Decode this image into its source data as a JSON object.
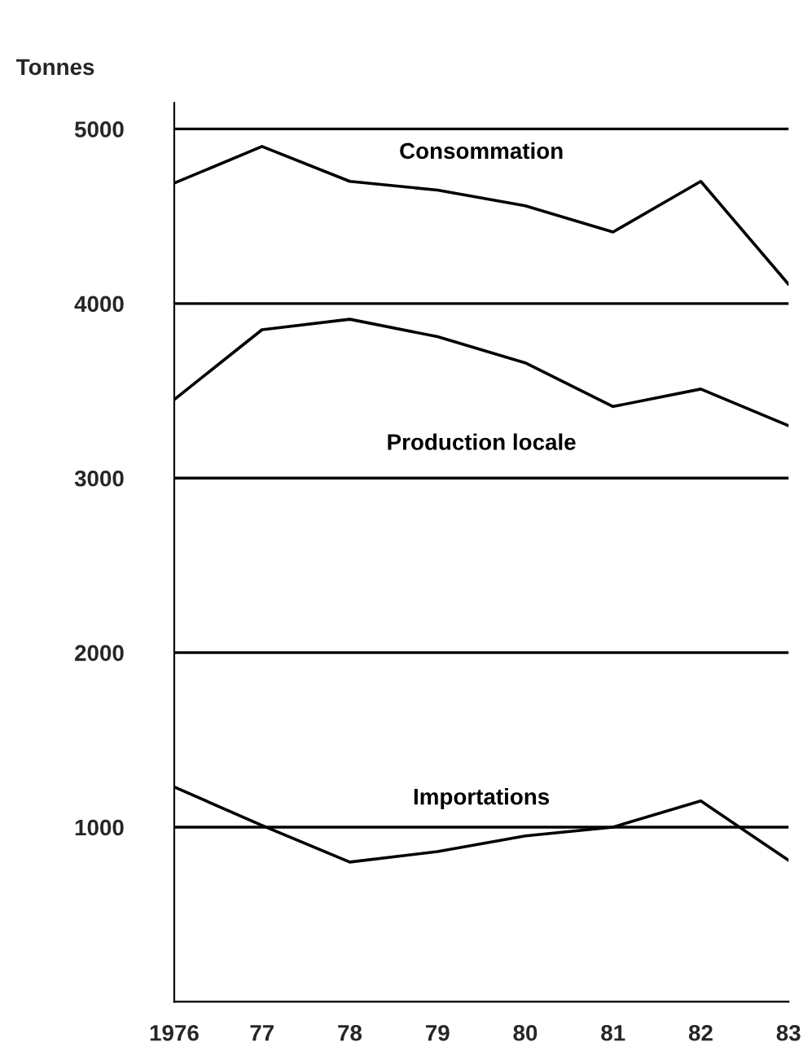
{
  "chart_data": {
    "type": "line",
    "ylabel": "Tonnes",
    "x": [
      1976,
      1977,
      1978,
      1979,
      1980,
      1981,
      1982,
      1983
    ],
    "series": [
      {
        "name": "Consommation",
        "color": "#000000",
        "values": [
          4690,
          4900,
          4700,
          4650,
          4560,
          4410,
          4700,
          4110
        ]
      },
      {
        "name": "Production locale",
        "color": "#000000",
        "values": [
          3450,
          3850,
          3910,
          3810,
          3660,
          3410,
          3510,
          3300
        ]
      },
      {
        "name": "Importations",
        "color": "#000000",
        "values": [
          1230,
          1010,
          800,
          860,
          950,
          1000,
          1150,
          810
        ]
      }
    ],
    "xlim": [
      1976,
      1983
    ],
    "xticks": [
      {
        "value": 1976,
        "label": "1976"
      },
      {
        "value": 1977,
        "label": "77"
      },
      {
        "value": 1978,
        "label": "78"
      },
      {
        "value": 1979,
        "label": "79"
      },
      {
        "value": 1980,
        "label": "80"
      },
      {
        "value": 1981,
        "label": "81"
      },
      {
        "value": 1982,
        "label": "82"
      },
      {
        "value": 1983,
        "label": "83"
      }
    ],
    "ylim": [
      0,
      5150
    ],
    "yticks": [
      1000,
      2000,
      3000,
      4000,
      5000
    ],
    "grid": "y",
    "marker": "none",
    "line_style": "solid",
    "legend": false
  }
}
